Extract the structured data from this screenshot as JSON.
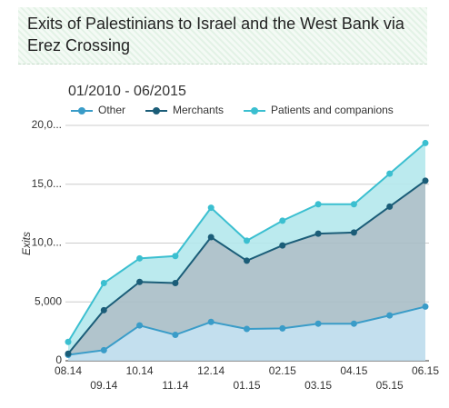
{
  "chart_data": {
    "type": "stacked_area",
    "title": "Exits of Palestinians to Israel and the West Bank via Erez Crossing",
    "subtitle": "01/2010 - 06/2015",
    "y_label": "Exits",
    "categories": [
      "08.14",
      "09.14",
      "10.14",
      "11.14",
      "12.14",
      "01.15",
      "02.15",
      "03.15",
      "04.15",
      "05.15",
      "06.15"
    ],
    "series": [
      {
        "name": "Other",
        "color": "#3a9cc8",
        "fill": "#bcdcec",
        "values": [
          500,
          900,
          3000,
          2200,
          3300,
          2700,
          2750,
          3150,
          3150,
          3850,
          4600
        ]
      },
      {
        "name": "Merchants",
        "color": "#1b5d78",
        "fill": "#a9bec6",
        "values": [
          100,
          3400,
          3700,
          4400,
          7200,
          5800,
          7050,
          7650,
          7750,
          9250,
          10700
        ]
      },
      {
        "name": "Patients and companions",
        "color": "#3bbfd0",
        "fill": "#b4e8ec",
        "values": [
          1000,
          2300,
          2000,
          2300,
          2500,
          1700,
          2100,
          2500,
          2400,
          2800,
          3200
        ]
      }
    ],
    "ylim": [
      0,
      20000
    ],
    "yticks": [
      0,
      {
        "value": 5000,
        "label": "5,000"
      },
      {
        "value": 10000,
        "label": "10,0..."
      },
      {
        "value": 15000,
        "label": "15,0..."
      },
      {
        "value": 20000,
        "label": "20,0..."
      }
    ],
    "grid": true,
    "legend": "top"
  }
}
